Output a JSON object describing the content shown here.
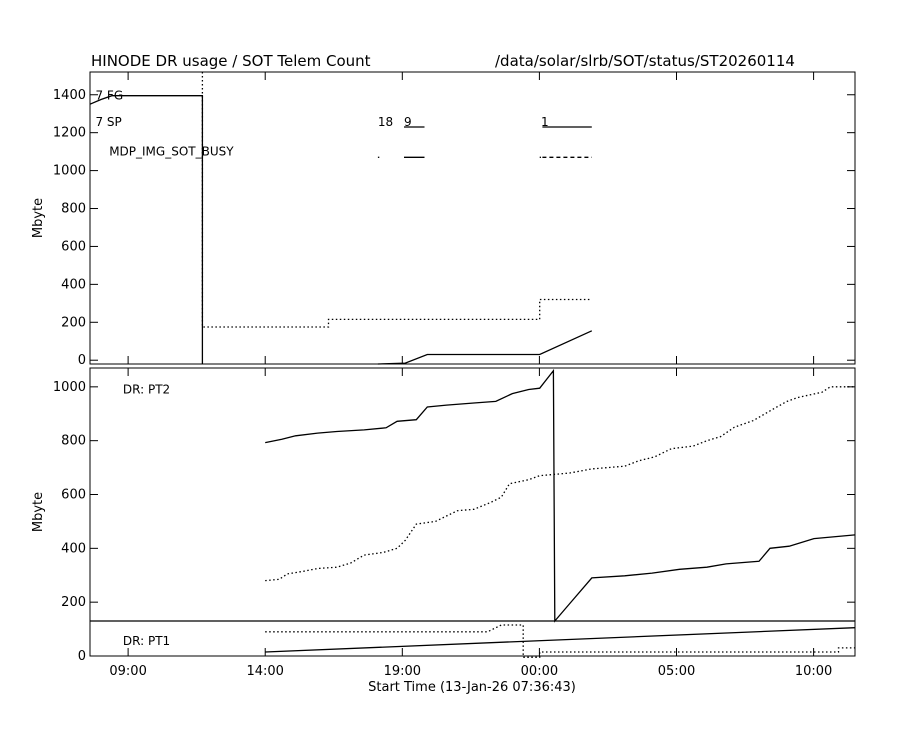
{
  "header": {
    "title": "HINODE DR usage / SOT Telem Count",
    "path": "/data/solar/slrb/SOT/status/ST20260114"
  },
  "xaxis": {
    "label": "Start Time (13-Jan-26 07:36:43)",
    "ticks": [
      {
        "label": "09:00",
        "h": 1.39
      },
      {
        "label": "14:00",
        "h": 6.39
      },
      {
        "label": "19:00",
        "h": 11.39
      },
      {
        "label": "00:00",
        "h": 16.39
      },
      {
        "label": "05:00",
        "h": 21.39
      },
      {
        "label": "10:00",
        "h": 26.39
      }
    ],
    "range": [
      0,
      27.9
    ]
  },
  "chart_data": [
    {
      "type": "line",
      "panel": "top",
      "title": "HINODE DR usage / SOT Telem Count",
      "ylabel": "Mbyte",
      "ylim": [
        -20,
        1520
      ],
      "yticks": [
        0,
        200,
        400,
        600,
        800,
        1000,
        1200,
        1400
      ],
      "legend_text": [
        {
          "text": "7 FG",
          "h": 0.2,
          "y": 1395
        },
        {
          "text": "7 SP",
          "h": 0.2,
          "y": 1255
        },
        {
          "text": "MDP_IMG_SOT_BUSY",
          "h": 0.7,
          "y": 1100
        },
        {
          "text": "18",
          "h": 10.5,
          "y": 1255
        },
        {
          "text": "9",
          "h": 11.45,
          "y": 1255
        },
        {
          "text": "1",
          "h": 16.45,
          "y": 1255
        }
      ],
      "series": [
        {
          "style": "solid",
          "points": [
            [
              0,
              1350
            ],
            [
              0.4,
              1375
            ],
            [
              0.8,
              1395
            ],
            [
              4.1,
              1395
            ],
            [
              4.1,
              -20
            ]
          ]
        },
        {
          "style": "dotted",
          "points": [
            [
              4.1,
              1520
            ],
            [
              4.1,
              175
            ],
            [
              8.7,
              175
            ],
            [
              8.7,
              215
            ],
            [
              16.4,
              215
            ],
            [
              16.4,
              320
            ],
            [
              18.3,
              320
            ]
          ]
        },
        {
          "style": "solid",
          "points": [
            [
              10.5,
              -20
            ],
            [
              11.5,
              -15
            ],
            [
              12.3,
              30
            ],
            [
              16.4,
              30
            ],
            [
              18.3,
              155
            ]
          ]
        },
        {
          "style": "solid",
          "points": [
            [
              11.45,
              1230
            ],
            [
              12.2,
              1230
            ]
          ]
        },
        {
          "style": "solid",
          "points": [
            [
              16.5,
              1230
            ],
            [
              18.3,
              1230
            ]
          ]
        },
        {
          "style": "solid",
          "points": [
            [
              11.45,
              1070
            ],
            [
              12.2,
              1070
            ]
          ]
        },
        {
          "style": "dashed",
          "points": [
            [
              16.5,
              1070
            ],
            [
              18.3,
              1070
            ]
          ]
        },
        {
          "style": "solid",
          "points": [
            [
              10.5,
              1070
            ],
            [
              10.55,
              1070
            ]
          ]
        },
        {
          "style": "solid",
          "points": [
            [
              16.4,
              1070
            ],
            [
              16.45,
              1070
            ]
          ]
        }
      ]
    },
    {
      "type": "line",
      "panel": "bottom",
      "ylabel": "Mbyte",
      "ylim": [
        0,
        1070
      ],
      "yticks": [
        0,
        200,
        400,
        600,
        800,
        1000
      ],
      "labels": [
        {
          "text": "DR: PT2",
          "h": 1.2,
          "y": 990
        },
        {
          "text": "DR: PT1",
          "h": 1.2,
          "y": 55
        }
      ],
      "partition_y": 130,
      "series": [
        {
          "name": "DR: PT2",
          "style": "solid",
          "points": [
            [
              6.39,
              793
            ],
            [
              7.0,
              805
            ],
            [
              7.5,
              818
            ],
            [
              8.3,
              828
            ],
            [
              9.0,
              834
            ],
            [
              10.0,
              840
            ],
            [
              10.8,
              848
            ],
            [
              11.2,
              872
            ],
            [
              11.9,
              878
            ],
            [
              12.3,
              925
            ],
            [
              13.0,
              932
            ],
            [
              14.0,
              940
            ],
            [
              14.8,
              946
            ],
            [
              15.4,
              975
            ],
            [
              16.0,
              990
            ],
            [
              16.4,
              995
            ],
            [
              16.9,
              1060
            ],
            [
              16.95,
              130
            ],
            [
              17.5,
              195
            ],
            [
              18.3,
              290
            ],
            [
              19.5,
              298
            ],
            [
              20.5,
              308
            ],
            [
              21.5,
              322
            ],
            [
              22.5,
              330
            ],
            [
              23.2,
              342
            ],
            [
              24.4,
              352
            ],
            [
              24.8,
              400
            ],
            [
              25.5,
              408
            ],
            [
              26.4,
              436
            ],
            [
              27.9,
              450
            ]
          ]
        },
        {
          "name": "DR: PT2 (dotted)",
          "style": "dotted",
          "points": [
            [
              6.39,
              280
            ],
            [
              6.9,
              285
            ],
            [
              7.2,
              305
            ],
            [
              7.8,
              315
            ],
            [
              8.3,
              325
            ],
            [
              9.0,
              330
            ],
            [
              9.5,
              345
            ],
            [
              10.0,
              375
            ],
            [
              10.7,
              385
            ],
            [
              11.2,
              400
            ],
            [
              11.5,
              430
            ],
            [
              11.9,
              490
            ],
            [
              12.6,
              500
            ],
            [
              13.0,
              520
            ],
            [
              13.4,
              540
            ],
            [
              14.0,
              545
            ],
            [
              14.6,
              570
            ],
            [
              15.0,
              590
            ],
            [
              15.3,
              640
            ],
            [
              16.0,
              655
            ],
            [
              16.4,
              670
            ],
            [
              17.5,
              680
            ],
            [
              18.3,
              695
            ],
            [
              19.5,
              705
            ],
            [
              20.0,
              725
            ],
            [
              20.6,
              740
            ],
            [
              21.2,
              770
            ],
            [
              22.0,
              780
            ],
            [
              22.5,
              800
            ],
            [
              23.0,
              815
            ],
            [
              23.5,
              850
            ],
            [
              24.2,
              875
            ],
            [
              24.7,
              905
            ],
            [
              25.4,
              945
            ],
            [
              25.8,
              960
            ],
            [
              26.7,
              980
            ],
            [
              27.0,
              1000
            ],
            [
              27.9,
              1000
            ]
          ]
        },
        {
          "name": "DR: PT1",
          "style": "solid",
          "points": [
            [
              6.39,
              15
            ],
            [
              27.9,
              105
            ]
          ]
        },
        {
          "name": "DR: PT1 (dotted)",
          "style": "dotted",
          "points": [
            [
              6.39,
              90
            ],
            [
              14.5,
              90
            ],
            [
              15.0,
              115
            ],
            [
              15.8,
              115
            ],
            [
              15.8,
              -5
            ],
            [
              16.4,
              -5
            ],
            [
              16.4,
              15
            ],
            [
              27.3,
              15
            ],
            [
              27.3,
              30
            ],
            [
              27.9,
              30
            ]
          ]
        }
      ]
    }
  ]
}
